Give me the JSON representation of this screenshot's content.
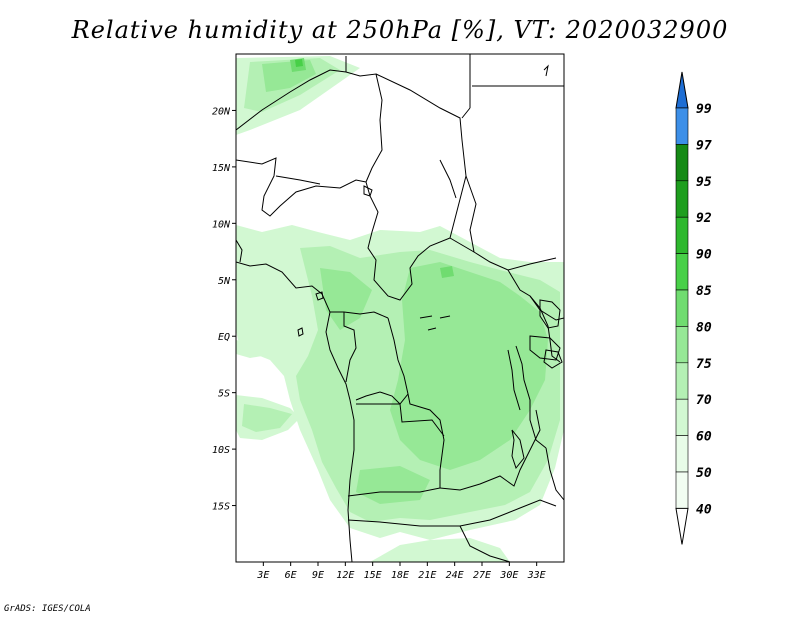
{
  "title": "Relative humidity at 250hPa [%], VT: 2020032900",
  "credit": "GrADS: IGES/COLA",
  "map": {
    "lon_range": [
      0,
      36
    ],
    "lat_range": [
      -20,
      25
    ],
    "lat_ticks": [
      {
        "value": 20,
        "label": "20N"
      },
      {
        "value": 15,
        "label": "15N"
      },
      {
        "value": 10,
        "label": "10N"
      },
      {
        "value": 5,
        "label": "5N"
      },
      {
        "value": 0,
        "label": "EQ"
      },
      {
        "value": -5,
        "label": "5S"
      },
      {
        "value": -10,
        "label": "10S"
      },
      {
        "value": -15,
        "label": "15S"
      }
    ],
    "lon_ticks": [
      {
        "value": 3,
        "label": "3E"
      },
      {
        "value": 6,
        "label": "6E"
      },
      {
        "value": 9,
        "label": "9E"
      },
      {
        "value": 12,
        "label": "12E"
      },
      {
        "value": 15,
        "label": "15E"
      },
      {
        "value": 18,
        "label": "18E"
      },
      {
        "value": 21,
        "label": "21E"
      },
      {
        "value": 24,
        "label": "24E"
      },
      {
        "value": 27,
        "label": "27E"
      },
      {
        "value": 30,
        "label": "30E"
      },
      {
        "value": 33,
        "label": "33E"
      }
    ]
  },
  "colorbar": {
    "levels": [
      {
        "label": "99",
        "color": "#1e6ed4"
      },
      {
        "label": "97",
        "color": "#3d8fe8"
      },
      {
        "label": "95",
        "color": "#168a16"
      },
      {
        "label": "92",
        "color": "#1e9e1e"
      },
      {
        "label": "90",
        "color": "#2eb82e"
      },
      {
        "label": "85",
        "color": "#48d048"
      },
      {
        "label": "80",
        "color": "#70dc70"
      },
      {
        "label": "75",
        "color": "#96e896"
      },
      {
        "label": "70",
        "color": "#b4f0b4"
      },
      {
        "label": "60",
        "color": "#d2f8d2"
      },
      {
        "label": "50",
        "color": "#e8fce8"
      },
      {
        "label": "40",
        "color": "#ffffff"
      }
    ],
    "top_color": "#1e6ed4",
    "bottom_color": "#ffffff"
  }
}
